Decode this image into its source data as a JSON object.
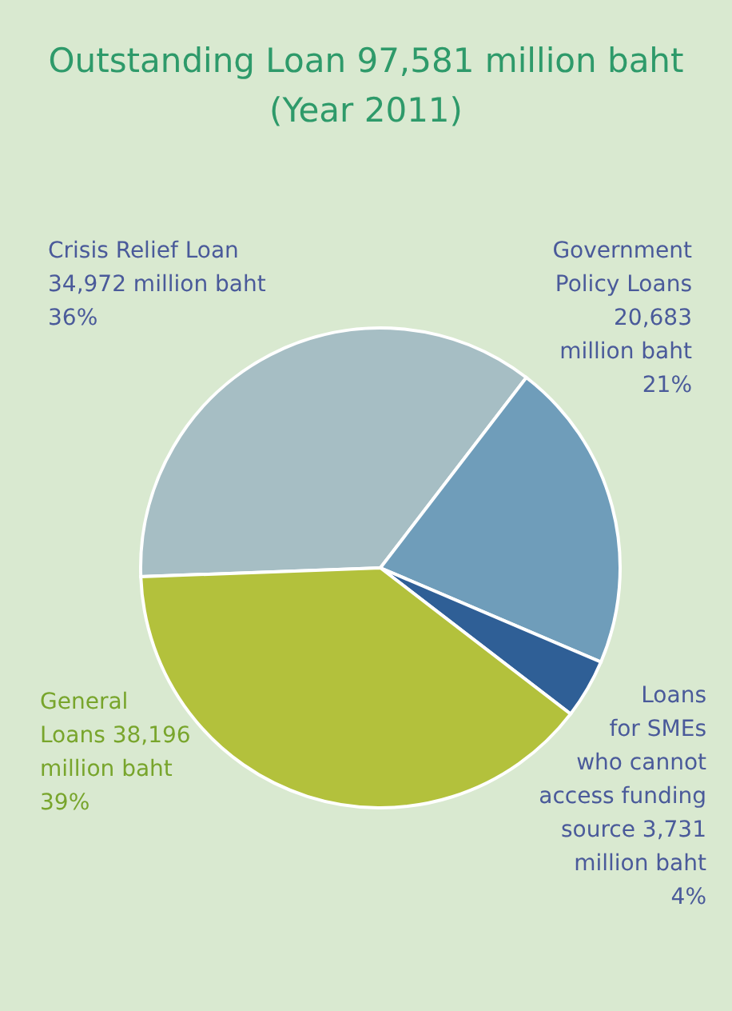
{
  "chart_data": {
    "type": "pie",
    "title": "Outstanding Loan 97,581 million baht",
    "subtitle": "(Year 2011)",
    "categories": [
      "Crisis Relief Loan 34,972 million baht",
      "Government Policy Loans 20,683 million baht",
      "Loans for SMEs who cannot access funding source 3,731 million baht",
      "General Loans 38,196 million baht"
    ],
    "values": [
      36,
      21,
      4,
      39
    ],
    "colors": [
      "#a6bec4",
      "#6f9dba",
      "#2f5f96",
      "#b3c13c"
    ],
    "value_labels": [
      "36%",
      "21%",
      "4%",
      "39%"
    ]
  }
}
